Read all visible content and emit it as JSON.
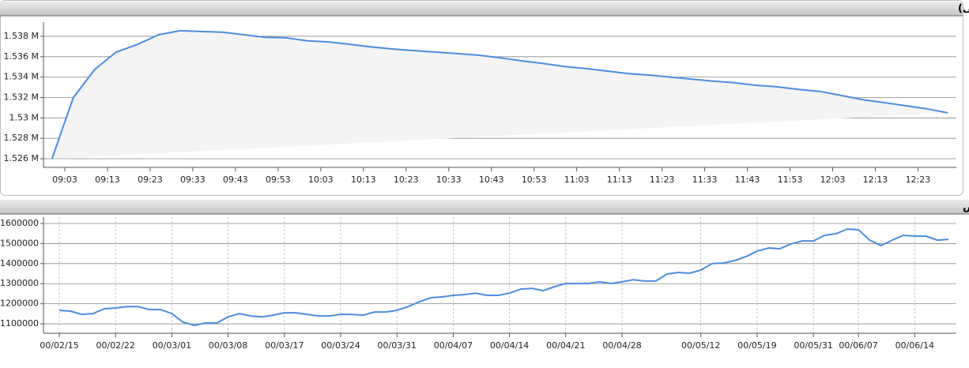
{
  "chart_data": [
    {
      "type": "line",
      "title": "شاخص کل (آخرین روز معاملاتی)",
      "color": "#4a8de0",
      "area": true,
      "grid": true,
      "x": [
        "09:00",
        "09:05",
        "09:10",
        "09:15",
        "09:20",
        "09:25",
        "09:30",
        "09:35",
        "09:40",
        "09:45",
        "09:50",
        "09:55",
        "10:00",
        "10:05",
        "10:10",
        "10:15",
        "10:20",
        "10:25",
        "10:30",
        "10:35",
        "10:40",
        "10:45",
        "10:50",
        "10:55",
        "11:00",
        "11:05",
        "11:10",
        "11:15",
        "11:20",
        "11:25",
        "11:30",
        "11:35",
        "11:40",
        "11:45",
        "11:50",
        "11:55",
        "12:00",
        "12:05",
        "12:10",
        "12:15",
        "12:20",
        "12:25",
        "12:30"
      ],
      "values": [
        1526000,
        1532000,
        1534750,
        1536450,
        1537200,
        1538150,
        1538550,
        1538470,
        1538400,
        1538150,
        1537900,
        1537850,
        1537550,
        1537450,
        1537200,
        1536950,
        1536750,
        1536600,
        1536450,
        1536300,
        1536150,
        1535900,
        1535600,
        1535350,
        1535050,
        1534850,
        1534600,
        1534350,
        1534200,
        1534000,
        1533800,
        1533600,
        1533450,
        1533200,
        1533050,
        1532800,
        1532600,
        1532200,
        1531800,
        1531500,
        1531200,
        1530900,
        1530500
      ],
      "xlim": [
        "08:58",
        "12:32"
      ],
      "xticks": [
        "09:03",
        "09:13",
        "09:23",
        "09:33",
        "09:43",
        "09:53",
        "10:03",
        "10:13",
        "10:23",
        "10:33",
        "10:43",
        "10:53",
        "11:03",
        "11:13",
        "11:23",
        "11:33",
        "11:43",
        "11:53",
        "12:03",
        "12:13",
        "12:23"
      ],
      "ylim": [
        1525150,
        1539390
      ],
      "yticks": [
        {
          "value": 1526000,
          "label": "1.526 M"
        },
        {
          "value": 1528000,
          "label": "1.528 M"
        },
        {
          "value": 1530000,
          "label": "1.53 M"
        },
        {
          "value": 1532000,
          "label": "1.532 M"
        },
        {
          "value": 1534000,
          "label": "1.534 M"
        },
        {
          "value": 1536000,
          "label": "1.536 M"
        },
        {
          "value": 1538000,
          "label": "1.538 M"
        }
      ]
    },
    {
      "type": "line",
      "title": "نمودار شاخص",
      "color": "#4a8de0",
      "area": false,
      "grid": true,
      "categories": [
        "00/02/15",
        null,
        null,
        null,
        null,
        "00/02/22",
        null,
        null,
        null,
        null,
        "00/03/01",
        null,
        null,
        null,
        null,
        "00/03/08",
        null,
        null,
        null,
        null,
        "00/03/17",
        null,
        null,
        null,
        null,
        "00/03/24",
        null,
        null,
        null,
        null,
        "00/03/31",
        null,
        null,
        null,
        null,
        "00/04/07",
        null,
        null,
        null,
        null,
        "00/04/14",
        null,
        null,
        null,
        null,
        "00/04/21",
        null,
        null,
        null,
        null,
        "00/04/28",
        null,
        null,
        null,
        null,
        null,
        null,
        "00/05/12",
        null,
        null,
        null,
        null,
        "00/05/19",
        null,
        null,
        null,
        null,
        "00/05/31",
        null,
        null,
        null,
        "00/06/07",
        null,
        null,
        null,
        null,
        "00/06/14",
        null,
        null,
        null
      ],
      "values": [
        1167000,
        1163000,
        1147000,
        1151000,
        1175000,
        1179000,
        1186000,
        1186000,
        1171000,
        1171000,
        1151000,
        1108000,
        1092000,
        1104000,
        1104000,
        1135000,
        1151000,
        1139000,
        1135000,
        1143000,
        1155000,
        1155000,
        1147000,
        1139000,
        1139000,
        1147000,
        1147000,
        1143000,
        1159000,
        1159000,
        1167000,
        1186000,
        1210000,
        1230000,
        1234000,
        1242000,
        1246000,
        1253000,
        1242000,
        1242000,
        1253000,
        1273000,
        1277000,
        1265000,
        1285000,
        1301000,
        1301000,
        1301000,
        1309000,
        1301000,
        1309000,
        1320000,
        1313000,
        1313000,
        1348000,
        1356000,
        1352000,
        1368000,
        1400000,
        1403000,
        1415000,
        1435000,
        1462000,
        1478000,
        1474000,
        1498000,
        1513000,
        1513000,
        1541000,
        1549000,
        1572000,
        1569000,
        1517000,
        1490000,
        1517000,
        1541000,
        1537000,
        1537000,
        1517000,
        1521000
      ],
      "ylim": [
        1053000,
        1631500
      ],
      "yticks": [
        1100000,
        1200000,
        1300000,
        1400000,
        1500000,
        1600000
      ]
    }
  ]
}
